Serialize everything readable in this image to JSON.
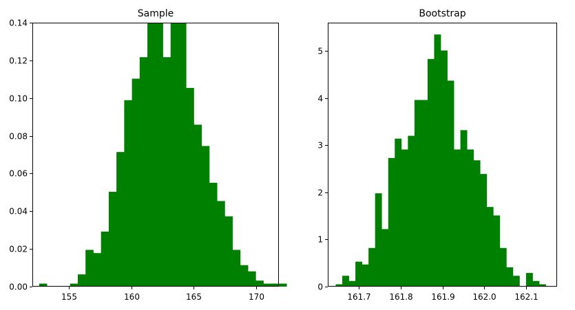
{
  "chart_data": [
    {
      "type": "bar",
      "title": "Sample",
      "xlabel": "",
      "ylabel": "",
      "xlim": [
        152.1,
        171.8
      ],
      "ylim": [
        0,
        0.14
      ],
      "color": "#008000",
      "grid": false,
      "x_ticks": [
        155,
        160,
        165,
        170
      ],
      "y_ticks": [
        0.0,
        0.02,
        0.04,
        0.06,
        0.08,
        0.1,
        0.12,
        0.14
      ],
      "y_tick_decimals": 2,
      "bin_start": 152.64,
      "bin_width": 0.618,
      "values": [
        0.0016,
        0,
        0,
        0,
        0.0016,
        0.0065,
        0.0195,
        0.0178,
        0.0292,
        0.0503,
        0.0714,
        0.0989,
        0.1103,
        0.1217,
        0.14,
        0.14,
        0.1217,
        0.14,
        0.14,
        0.1054,
        0.0859,
        0.0746,
        0.0551,
        0.0454,
        0.0373,
        0.0195,
        0.0114,
        0.0081,
        0.0032,
        0.0016,
        0.0016,
        0.0016
      ]
    },
    {
      "type": "bar",
      "title": "Bootstrap",
      "xlabel": "",
      "ylabel": "",
      "xlim": [
        161.625,
        162.175
      ],
      "ylim": [
        0,
        5.6
      ],
      "color": "#008000",
      "grid": false,
      "x_ticks": [
        161.7,
        161.8,
        161.9,
        162.0,
        162.1
      ],
      "y_ticks": [
        0,
        1,
        2,
        3,
        4,
        5
      ],
      "y_tick_decimals": 0,
      "bin_start": 161.644,
      "bin_width": 0.01574,
      "values": [
        0.05,
        0.23,
        0.12,
        0.53,
        0.47,
        0.82,
        1.98,
        1.22,
        2.73,
        3.14,
        2.91,
        3.2,
        3.96,
        3.96,
        4.83,
        5.35,
        5.01,
        4.37,
        2.91,
        3.32,
        2.91,
        2.68,
        2.39,
        1.69,
        1.51,
        0.82,
        0.41,
        0.23,
        0.0,
        0.29,
        0.12,
        0.05
      ]
    }
  ]
}
